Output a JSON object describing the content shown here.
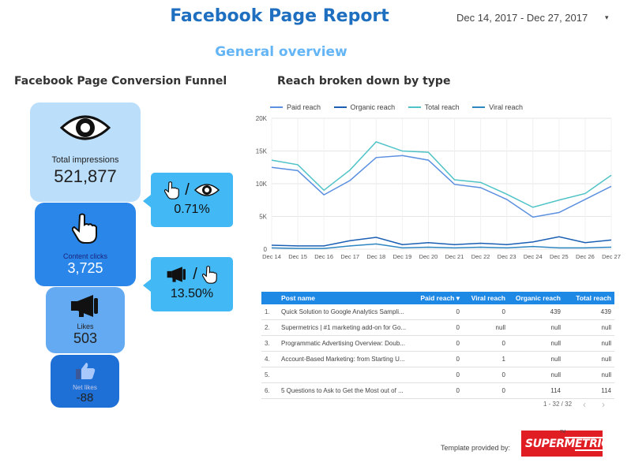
{
  "header": {
    "title": "Facebook Page Report",
    "date_range": "Dec 14, 2017 - Dec 27, 2017",
    "date_caret": "▾",
    "subtitle": "General overview"
  },
  "funnel": {
    "title": "Facebook Page Conversion Funnel",
    "impressions": {
      "label": "Total impressions",
      "value": "521,877",
      "icon": "eye-icon"
    },
    "clicks": {
      "label": "Content clicks",
      "value": "3,725",
      "icon": "pointer-hand-icon"
    },
    "likes": {
      "label": "Likes",
      "value": "503",
      "icon": "megaphone-icon"
    },
    "net_likes": {
      "label": "Net likes",
      "value": "-88",
      "icon": "thumbs-up-icon"
    },
    "ratio_ctr": {
      "value": "0.71%",
      "slash": "/"
    },
    "ratio_like": {
      "value": "13.50%",
      "slash": "/"
    }
  },
  "chart": {
    "title": "Reach broken down by type"
  },
  "chart_data": {
    "type": "line",
    "categories": [
      "Dec 14",
      "Dec 15",
      "Dec 16",
      "Dec 17",
      "Dec 18",
      "Dec 19",
      "Dec 20",
      "Dec 21",
      "Dec 22",
      "Dec 23",
      "Dec 24",
      "Dec 25",
      "Dec 26",
      "Dec 27"
    ],
    "series": [
      {
        "name": "Paid reach",
        "color": "#5b8fe0",
        "values": [
          12500,
          12000,
          8300,
          10500,
          14000,
          14300,
          13600,
          9900,
          9400,
          7600,
          4900,
          5600,
          7600,
          9600
        ]
      },
      {
        "name": "Organic reach",
        "color": "#1a5fb4",
        "values": [
          600,
          500,
          500,
          1300,
          1800,
          700,
          1000,
          700,
          900,
          700,
          1100,
          1900,
          1000,
          1400
        ]
      },
      {
        "name": "Total reach",
        "color": "#4fc3c7",
        "values": [
          13600,
          12900,
          9000,
          12100,
          16400,
          15000,
          14800,
          10600,
          10200,
          8400,
          6400,
          7500,
          8500,
          11300
        ]
      },
      {
        "name": "Viral reach",
        "color": "#2e86c1",
        "values": [
          200,
          100,
          100,
          500,
          800,
          200,
          300,
          200,
          300,
          200,
          400,
          200,
          200,
          300
        ]
      }
    ],
    "y_ticks": [
      "0",
      "5K",
      "10K",
      "15K",
      "20K"
    ],
    "ylim": [
      0,
      20000
    ],
    "grid": true,
    "legend": "top"
  },
  "table": {
    "headers": {
      "post": "Post name",
      "paid": "Paid reach ▾",
      "viral": "Viral reach",
      "organic": "Organic reach",
      "total": "Total reach"
    },
    "rows": [
      {
        "idx": "1.",
        "post": "Quick Solution to Google Analytics Sampli...",
        "paid": "0",
        "viral": "0",
        "organic": "439",
        "total": "439"
      },
      {
        "idx": "2.",
        "post": "Supermetrics | #1 marketing add-on for Go...",
        "paid": "0",
        "viral": "null",
        "organic": "null",
        "total": "null"
      },
      {
        "idx": "3.",
        "post": "Programmatic Advertising Overview: Doub...",
        "paid": "0",
        "viral": "0",
        "organic": "null",
        "total": "null"
      },
      {
        "idx": "4.",
        "post": "Account-Based Marketing: from Starting U...",
        "paid": "0",
        "viral": "1",
        "organic": "null",
        "total": "null"
      },
      {
        "idx": "5.",
        "post": "",
        "paid": "0",
        "viral": "0",
        "organic": "null",
        "total": "null"
      },
      {
        "idx": "6.",
        "post": "5 Questions to Ask to Get the Most out of ...",
        "paid": "0",
        "viral": "0",
        "organic": "114",
        "total": "114"
      }
    ],
    "pagination": "1 - 32 / 32",
    "prev": "‹",
    "next": "›"
  },
  "footer": {
    "provided_by": "Template provided by:",
    "logo_text": "SUPERMETRICS",
    "logo_tm": "TM"
  }
}
